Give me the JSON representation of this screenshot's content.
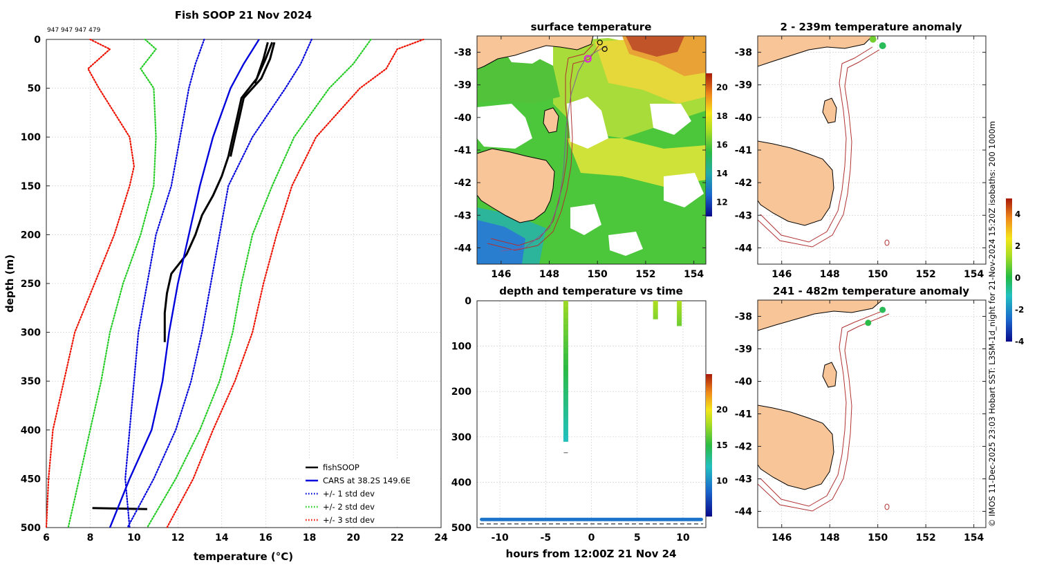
{
  "colors": {
    "profile": "#000000",
    "cars": "#0000dd",
    "std1": "#0000dd",
    "std2": "#22cc22",
    "std3": "#ee1100",
    "land": "#f7c598",
    "isobath": "#b03030",
    "grid": "#cccccc"
  },
  "side_caption": "© IMOS 11-Dec-2025 23:03 Hobart SST: L3SM-1d_night for 21-Nov-2024 15:20Z isobaths: 200  1000m",
  "chart_data": [
    {
      "id": "profile",
      "type": "line",
      "title": "Fish SOOP 21 Nov 2024",
      "subtitle": "947 947 947 479",
      "xlabel": "temperature (°C)",
      "ylabel": "depth (m)",
      "xlim": [
        6,
        24
      ],
      "ylim": [
        0,
        500
      ],
      "y_reversed": true,
      "grid": true,
      "xticks": [
        6,
        8,
        10,
        12,
        14,
        16,
        18,
        20,
        22,
        24
      ],
      "yticks": [
        0,
        50,
        100,
        150,
        200,
        250,
        300,
        350,
        400,
        450,
        500
      ],
      "legend_position": "bottom-right",
      "series": [
        {
          "name": "fishSOOP",
          "key": "profile",
          "style": "solid",
          "depth": [
            3,
            20,
            40,
            60,
            80,
            100,
            120,
            140,
            160,
            180,
            200,
            220,
            240,
            260,
            280,
            310
          ],
          "temp": [
            16.1,
            15.9,
            15.6,
            14.9,
            14.7,
            14.5,
            14.3,
            14.0,
            13.6,
            13.1,
            12.8,
            12.4,
            11.7,
            11.5,
            11.4,
            11.4
          ]
        },
        {
          "name": "fishSOOP",
          "key": "profile",
          "style": "solid",
          "legend": false,
          "depth": [
            3,
            20,
            40,
            60,
            80,
            100,
            120
          ],
          "temp": [
            16.4,
            16.2,
            15.8,
            15.0,
            14.8,
            14.6,
            14.4
          ]
        },
        {
          "name": "fishSOOP",
          "key": "profile",
          "style": "solid",
          "legend": false,
          "depth": [
            3,
            20,
            45
          ],
          "temp": [
            16.3,
            16.0,
            15.5
          ]
        },
        {
          "name": "fishSOOP",
          "key": "profile",
          "style": "solid",
          "legend": false,
          "depth": [
            480,
            481
          ],
          "temp": [
            8.1,
            10.6
          ]
        },
        {
          "name": "CARS at 38.2S 149.6E",
          "key": "cars",
          "style": "solid",
          "depth": [
            0,
            25,
            50,
            100,
            150,
            200,
            250,
            300,
            350,
            400,
            450,
            500
          ],
          "temp": [
            15.7,
            15.0,
            14.4,
            13.6,
            13.0,
            12.5,
            12.0,
            11.6,
            11.3,
            10.8,
            9.8,
            8.9
          ]
        },
        {
          "name": "+/- 1 std dev",
          "key": "std1",
          "style": "dotted",
          "depth": [
            0,
            25,
            50,
            100,
            150,
            200,
            250,
            300,
            350,
            400,
            450,
            500
          ],
          "temp": [
            13.2,
            12.8,
            12.5,
            12.1,
            11.7,
            11.0,
            10.6,
            10.2,
            10.0,
            9.8,
            9.6,
            9.8
          ]
        },
        {
          "name": "+/- 1 std dev",
          "key": "std1",
          "style": "dotted",
          "legend": false,
          "depth": [
            0,
            25,
            50,
            100,
            150,
            200,
            250,
            300,
            350,
            400,
            450,
            500
          ],
          "temp": [
            18.1,
            17.6,
            16.9,
            15.4,
            14.3,
            13.9,
            13.5,
            13.1,
            12.6,
            11.9,
            10.9,
            9.7
          ]
        },
        {
          "name": "+/- 2 std dev",
          "key": "std2",
          "style": "dotted",
          "depth": [
            0,
            10,
            30,
            50,
            100,
            150,
            200,
            250,
            300,
            350,
            400,
            450,
            500
          ],
          "temp": [
            10.5,
            11.0,
            10.3,
            10.9,
            11.0,
            10.9,
            10.3,
            9.5,
            8.9,
            8.5,
            8.0,
            7.5,
            7.0
          ]
        },
        {
          "name": "+/- 2 std dev",
          "key": "std2",
          "style": "dotted",
          "legend": false,
          "depth": [
            0,
            25,
            50,
            100,
            150,
            200,
            250,
            300,
            350,
            400,
            450,
            500
          ],
          "temp": [
            20.8,
            20.0,
            18.9,
            17.3,
            16.3,
            15.4,
            14.9,
            14.5,
            13.9,
            13.0,
            11.9,
            10.6
          ]
        },
        {
          "name": "+/- 3 std dev",
          "key": "std3",
          "style": "dotted",
          "depth": [
            0,
            10,
            30,
            50,
            100,
            130,
            150,
            200,
            250,
            300,
            350,
            400,
            450,
            500
          ],
          "temp": [
            8.0,
            8.9,
            7.9,
            8.4,
            9.8,
            10.0,
            9.8,
            9.1,
            8.2,
            7.3,
            6.8,
            6.3,
            6.1,
            6.0
          ]
        },
        {
          "name": "+/- 3 std dev",
          "key": "std3",
          "style": "dotted",
          "legend": false,
          "depth": [
            0,
            10,
            30,
            50,
            100,
            150,
            200,
            250,
            300,
            350,
            400,
            450,
            500
          ],
          "temp": [
            23.2,
            22.0,
            21.5,
            20.3,
            18.3,
            17.2,
            16.5,
            15.9,
            15.4,
            14.6,
            13.6,
            12.7,
            11.5
          ]
        }
      ]
    },
    {
      "id": "sst",
      "type": "heatmap",
      "title": "surface temperature",
      "xlim": [
        145,
        154.5
      ],
      "ylim": [
        -44.5,
        -37.5
      ],
      "xticks": [
        146,
        148,
        150,
        152,
        154
      ],
      "yticks": [
        -38,
        -39,
        -40,
        -41,
        -42,
        -43,
        -44
      ],
      "colorbar": {
        "min": 11,
        "max": 21,
        "ticks": [
          12,
          14,
          16,
          18,
          20
        ]
      },
      "track_lon": [
        150.4,
        149.9,
        149.5,
        149.2,
        148.9,
        148.7,
        148.6,
        148.4,
        148.0,
        147.0,
        146.0
      ],
      "track_lat": [
        -37.8,
        -38.0,
        -38.2,
        -38.6,
        -39.3,
        -40.3,
        -41.6,
        -42.6,
        -43.4,
        -44.0,
        -44.1
      ],
      "marker_magenta": [
        149.6,
        -38.2
      ],
      "markers_open": [
        [
          150.1,
          -37.7
        ],
        [
          150.3,
          -37.9
        ]
      ]
    },
    {
      "id": "depth_time",
      "type": "scatter",
      "title": "depth and temperature vs time",
      "xlabel": "hours from 12:00Z 21 Nov 24",
      "xlim": [
        -12.5,
        12.5
      ],
      "ylim": [
        0,
        500
      ],
      "y_reversed": true,
      "xticks": [
        -10,
        -5,
        0,
        5,
        10
      ],
      "yticks": [
        0,
        100,
        200,
        300,
        400,
        500
      ],
      "colorbar": {
        "min": 5,
        "max": 25,
        "ticks": [
          10,
          15,
          20
        ]
      },
      "casts": [
        {
          "hour": -2.8,
          "max_depth": 310,
          "temp_top": 17.0,
          "temp_bottom": 11.5
        },
        {
          "hour": 7.0,
          "max_depth": 40,
          "temp_top": 17.5,
          "temp_bottom": 16.5
        },
        {
          "hour": 9.6,
          "max_depth": 55,
          "temp_top": 17.5,
          "temp_bottom": 16.0
        }
      ],
      "bottom_hours": [
        -12.0,
        12.0
      ],
      "bottom_depth": 482,
      "bottom_temp": 8.5,
      "dash_depth": 492
    },
    {
      "id": "anom_shallow",
      "type": "map",
      "title": "2 - 239m temperature anomaly",
      "xlim": [
        145,
        154.5
      ],
      "ylim": [
        -44.5,
        -37.5
      ],
      "xticks": [
        146,
        148,
        150,
        152,
        154
      ],
      "yticks": [
        -38,
        -39,
        -40,
        -41,
        -42,
        -43,
        -44
      ],
      "points": [
        {
          "lon": 149.8,
          "lat": -37.6,
          "anomaly": 1.0
        },
        {
          "lon": 150.2,
          "lat": -37.8,
          "anomaly": 0.0
        }
      ],
      "colorbar": {
        "min": -4,
        "max": 5,
        "ticks": [
          4,
          2,
          0,
          -2,
          -4
        ]
      }
    },
    {
      "id": "anom_deep",
      "type": "map",
      "title": "241 - 482m temperature anomaly",
      "xlim": [
        145,
        154.5
      ],
      "ylim": [
        -44.5,
        -37.5
      ],
      "xticks": [
        146,
        148,
        150,
        152,
        154
      ],
      "yticks": [
        -38,
        -39,
        -40,
        -41,
        -42,
        -43,
        -44
      ],
      "points": [
        {
          "lon": 149.6,
          "lat": -38.2,
          "anomaly": 0.2
        },
        {
          "lon": 150.2,
          "lat": -37.8,
          "anomaly": 0.0
        }
      ]
    }
  ]
}
